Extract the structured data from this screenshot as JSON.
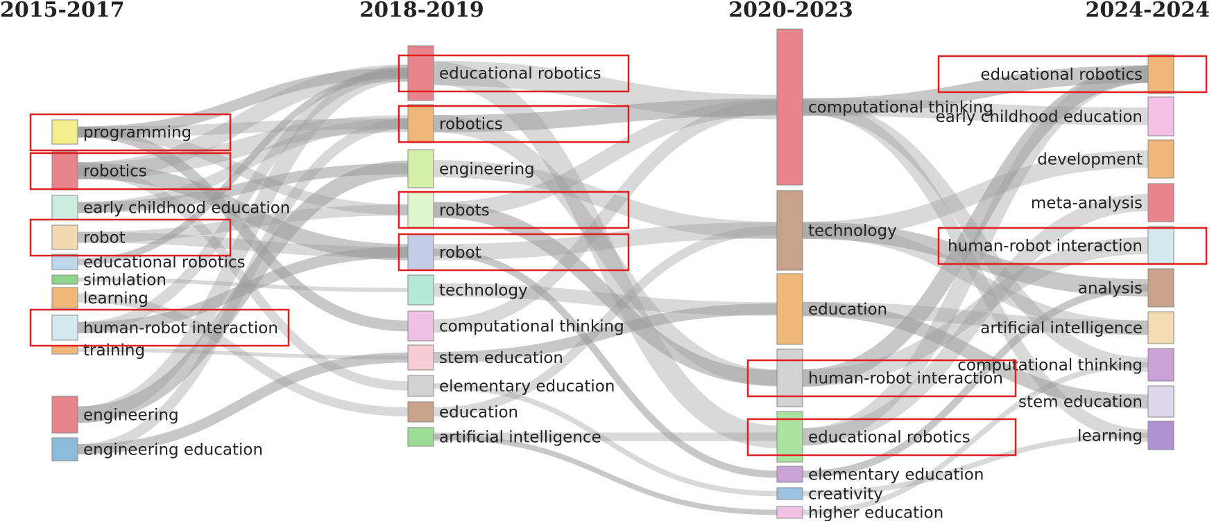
{
  "periods": [
    "2015-2017",
    "2018-2019",
    "2020-2023",
    "2024-2024"
  ],
  "columns": [
    {
      "period": "2015-2017",
      "nodes": [
        {
          "label": "programming",
          "color": "#f4ee8e",
          "highlighted": true
        },
        {
          "label": "robotics",
          "color": "#e8848c",
          "highlighted": true
        },
        {
          "label": "early childhood education",
          "color": "#c9eee0",
          "highlighted": false
        },
        {
          "label": "robot",
          "color": "#f3d9b1",
          "highlighted": true
        },
        {
          "label": "educational robotics",
          "color": "#bcd8ea",
          "highlighted": false
        },
        {
          "label": "simulation",
          "color": "#8fd48a",
          "highlighted": false
        },
        {
          "label": "learning",
          "color": "#f0b878",
          "highlighted": false
        },
        {
          "label": "human-robot interaction",
          "color": "#d2e9f0",
          "highlighted": true
        },
        {
          "label": "training",
          "color": "#f0b878",
          "highlighted": false
        },
        {
          "label": "engineering",
          "color": "#e8848c",
          "highlighted": false
        },
        {
          "label": "engineering education",
          "color": "#8cbcdc",
          "highlighted": false
        }
      ]
    },
    {
      "period": "2018-2019",
      "nodes": [
        {
          "label": "educational robotics",
          "color": "#e8848c",
          "highlighted": true
        },
        {
          "label": "robotics",
          "color": "#f0b878",
          "highlighted": true
        },
        {
          "label": "engineering",
          "color": "#d4f0a8",
          "highlighted": false
        },
        {
          "label": "robots",
          "color": "#dff5cc",
          "highlighted": true
        },
        {
          "label": "robot",
          "color": "#c3cde6",
          "highlighted": true
        },
        {
          "label": "technology",
          "color": "#b5e8d6",
          "highlighted": false
        },
        {
          "label": "computational thinking",
          "color": "#eec2e6",
          "highlighted": false
        },
        {
          "label": "stem education",
          "color": "#f6cdd2",
          "highlighted": false
        },
        {
          "label": "elementary education",
          "color": "#d2d2d2",
          "highlighted": false
        },
        {
          "label": "education",
          "color": "#c9a28c",
          "highlighted": false
        },
        {
          "label": "artificial intelligence",
          "color": "#9cdc94",
          "highlighted": false
        }
      ]
    },
    {
      "period": "2020-2023",
      "nodes": [
        {
          "label": "computational thinking",
          "color": "#e8848c",
          "highlighted": false
        },
        {
          "label": "technology",
          "color": "#c9a28c",
          "highlighted": false
        },
        {
          "label": "education",
          "color": "#f0b878",
          "highlighted": false
        },
        {
          "label": "human-robot interaction",
          "color": "#d2d2d2",
          "highlighted": true
        },
        {
          "label": "educational robotics",
          "color": "#aae2a0",
          "highlighted": true
        },
        {
          "label": "elementary education",
          "color": "#c9a2d8",
          "highlighted": false
        },
        {
          "label": "creativity",
          "color": "#9cc4e2",
          "highlighted": false
        },
        {
          "label": "higher education",
          "color": "#f3c0e6",
          "highlighted": false
        }
      ]
    },
    {
      "period": "2024-2024",
      "nodes": [
        {
          "label": "educational robotics",
          "color": "#f0b878",
          "highlighted": true
        },
        {
          "label": "early childhood education",
          "color": "#f3c0e6",
          "highlighted": false
        },
        {
          "label": "development",
          "color": "#f0b878",
          "highlighted": false
        },
        {
          "label": "meta-analysis",
          "color": "#e8848c",
          "highlighted": false
        },
        {
          "label": "human-robot interaction",
          "color": "#d2e9f0",
          "highlighted": true
        },
        {
          "label": "analysis",
          "color": "#c9a28c",
          "highlighted": false
        },
        {
          "label": "artificial intelligence",
          "color": "#f3dcb1",
          "highlighted": false
        },
        {
          "label": "computational thinking",
          "color": "#c9a2d8",
          "highlighted": false
        },
        {
          "label": "stem education",
          "color": "#e0d8ea",
          "highlighted": false
        },
        {
          "label": "learning",
          "color": "#ad94d0",
          "highlighted": false
        }
      ]
    }
  ],
  "flows": [
    {
      "from": [
        0,
        0
      ],
      "to": [
        1,
        0
      ]
    },
    {
      "from": [
        0,
        0
      ],
      "to": [
        1,
        1
      ]
    },
    {
      "from": [
        0,
        0
      ],
      "to": [
        1,
        3
      ]
    },
    {
      "from": [
        0,
        0
      ],
      "to": [
        1,
        6
      ]
    },
    {
      "from": [
        0,
        1
      ],
      "to": [
        1,
        0
      ]
    },
    {
      "from": [
        0,
        1
      ],
      "to": [
        1,
        1
      ]
    },
    {
      "from": [
        0,
        1
      ],
      "to": [
        1,
        4
      ]
    },
    {
      "from": [
        0,
        1
      ],
      "to": [
        1,
        8
      ]
    },
    {
      "from": [
        0,
        2
      ],
      "to": [
        1,
        1
      ]
    },
    {
      "from": [
        0,
        2
      ],
      "to": [
        1,
        2
      ]
    },
    {
      "from": [
        0,
        3
      ],
      "to": [
        1,
        4
      ]
    },
    {
      "from": [
        0,
        3
      ],
      "to": [
        1,
        3
      ]
    },
    {
      "from": [
        0,
        4
      ],
      "to": [
        1,
        0
      ]
    },
    {
      "from": [
        0,
        5
      ],
      "to": [
        1,
        5
      ]
    },
    {
      "from": [
        0,
        6
      ],
      "to": [
        1,
        9
      ]
    },
    {
      "from": [
        0,
        7
      ],
      "to": [
        1,
        4
      ]
    },
    {
      "from": [
        0,
        7
      ],
      "to": [
        1,
        0
      ]
    },
    {
      "from": [
        0,
        8
      ],
      "to": [
        1,
        7
      ]
    },
    {
      "from": [
        0,
        9
      ],
      "to": [
        1,
        2
      ]
    },
    {
      "from": [
        0,
        9
      ],
      "to": [
        1,
        0
      ]
    },
    {
      "from": [
        0,
        10
      ],
      "to": [
        1,
        1
      ]
    },
    {
      "from": [
        0,
        10
      ],
      "to": [
        1,
        7
      ]
    },
    {
      "from": [
        1,
        0
      ],
      "to": [
        2,
        0
      ]
    },
    {
      "from": [
        1,
        0
      ],
      "to": [
        2,
        4
      ]
    },
    {
      "from": [
        1,
        1
      ],
      "to": [
        2,
        0
      ]
    },
    {
      "from": [
        1,
        1
      ],
      "to": [
        2,
        3
      ]
    },
    {
      "from": [
        1,
        2
      ],
      "to": [
        2,
        1
      ]
    },
    {
      "from": [
        1,
        3
      ],
      "to": [
        2,
        3
      ]
    },
    {
      "from": [
        1,
        3
      ],
      "to": [
        2,
        0
      ]
    },
    {
      "from": [
        1,
        4
      ],
      "to": [
        2,
        1
      ]
    },
    {
      "from": [
        1,
        4
      ],
      "to": [
        2,
        5
      ]
    },
    {
      "from": [
        1,
        5
      ],
      "to": [
        2,
        2
      ]
    },
    {
      "from": [
        1,
        6
      ],
      "to": [
        2,
        0
      ]
    },
    {
      "from": [
        1,
        7
      ],
      "to": [
        2,
        2
      ]
    },
    {
      "from": [
        1,
        8
      ],
      "to": [
        2,
        6
      ]
    },
    {
      "from": [
        1,
        9
      ],
      "to": [
        2,
        1
      ]
    },
    {
      "from": [
        1,
        10
      ],
      "to": [
        2,
        7
      ]
    },
    {
      "from": [
        1,
        10
      ],
      "to": [
        2,
        4
      ]
    },
    {
      "from": [
        2,
        0
      ],
      "to": [
        3,
        1
      ]
    },
    {
      "from": [
        2,
        0
      ],
      "to": [
        3,
        0
      ]
    },
    {
      "from": [
        2,
        0
      ],
      "to": [
        3,
        7
      ]
    },
    {
      "from": [
        2,
        0
      ],
      "to": [
        3,
        9
      ]
    },
    {
      "from": [
        2,
        1
      ],
      "to": [
        3,
        5
      ]
    },
    {
      "from": [
        2,
        1
      ],
      "to": [
        3,
        2
      ]
    },
    {
      "from": [
        2,
        1
      ],
      "to": [
        3,
        6
      ]
    },
    {
      "from": [
        2,
        2
      ],
      "to": [
        3,
        8
      ]
    },
    {
      "from": [
        2,
        2
      ],
      "to": [
        3,
        6
      ]
    },
    {
      "from": [
        2,
        3
      ],
      "to": [
        3,
        4
      ]
    },
    {
      "from": [
        2,
        3
      ],
      "to": [
        3,
        0
      ]
    },
    {
      "from": [
        2,
        4
      ],
      "to": [
        3,
        0
      ]
    },
    {
      "from": [
        2,
        4
      ],
      "to": [
        3,
        3
      ]
    },
    {
      "from": [
        2,
        5
      ],
      "to": [
        3,
        5
      ]
    },
    {
      "from": [
        2,
        6
      ],
      "to": [
        3,
        9
      ]
    },
    {
      "from": [
        2,
        7
      ],
      "to": [
        3,
        7
      ]
    }
  ]
}
